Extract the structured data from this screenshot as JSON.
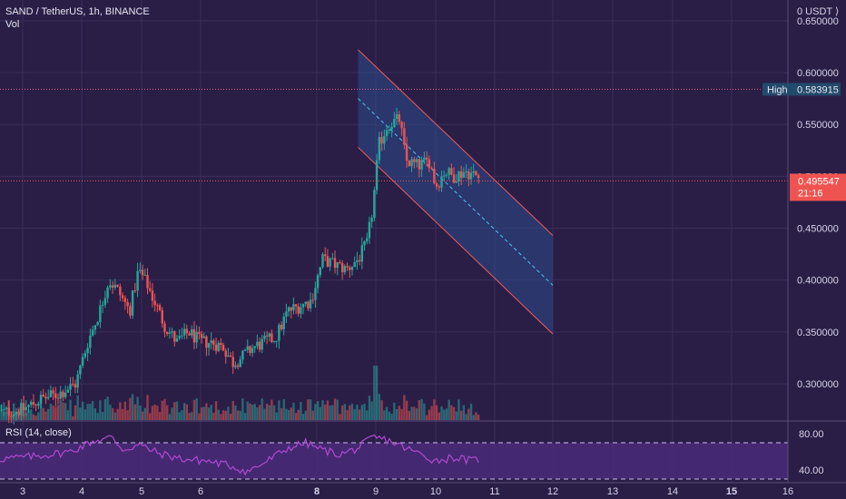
{
  "header": {
    "symbol": "SAND / TetherUS, 1h, BINANCE",
    "volume_label": "Vol"
  },
  "price_axis": {
    "top_label": "0 USDT ⟩",
    "ticks": [
      "0.650000",
      "0.600000",
      "0.550000",
      "0.500000",
      "0.450000",
      "0.400000",
      "0.350000",
      "0.300000"
    ],
    "high_label": "High",
    "high_value": "0.583915",
    "last_price": "0.495547",
    "countdown": "21:16"
  },
  "rsi": {
    "label": "RSI (14, close)",
    "ticks": [
      "80.00",
      "40.00"
    ]
  },
  "time_axis": {
    "ticks": [
      "3",
      "4",
      "5",
      "6",
      "8",
      "9",
      "10",
      "11",
      "12",
      "13",
      "14",
      "15",
      "16"
    ],
    "bold": [
      "8",
      "15"
    ]
  },
  "colors": {
    "background": "#2a1e47",
    "grid": "#3a2e5a",
    "up": "#26a69a",
    "down": "#ef5350",
    "channel_fill": "#2a4a8a",
    "channel_border": "#f05a5a",
    "channel_mid": "#4fc3f7",
    "rsi_band": "#4a2a7a",
    "rsi_line": "#b04ad0",
    "last_price": "#ef5350",
    "high_line": "#e0607a"
  },
  "chart_data": {
    "type": "candlestick",
    "title": "SAND / TetherUS, 1h, BINANCE",
    "ylim": [
      0.265,
      0.67
    ],
    "rsi_ylim": [
      27,
      93
    ],
    "high": 0.583915,
    "last": 0.495547,
    "x_days": [
      "3",
      "4",
      "5",
      "6",
      "8",
      "9",
      "10",
      "11",
      "12",
      "13",
      "14",
      "15",
      "16"
    ],
    "path_keypoints": [
      [
        2.6,
        0.272
      ],
      [
        3.0,
        0.275
      ],
      [
        3.3,
        0.285
      ],
      [
        3.6,
        0.29
      ],
      [
        3.9,
        0.3
      ],
      [
        4.1,
        0.34
      ],
      [
        4.3,
        0.37
      ],
      [
        4.45,
        0.4
      ],
      [
        4.6,
        0.39
      ],
      [
        4.8,
        0.37
      ],
      [
        4.95,
        0.41
      ],
      [
        5.1,
        0.395
      ],
      [
        5.25,
        0.375
      ],
      [
        5.4,
        0.355
      ],
      [
        5.6,
        0.34
      ],
      [
        5.8,
        0.35
      ],
      [
        6.0,
        0.34
      ],
      [
        6.2,
        0.34
      ],
      [
        6.4,
        0.335
      ],
      [
        6.55,
        0.32
      ],
      [
        6.7,
        0.325
      ],
      [
        6.9,
        0.335
      ],
      [
        7.1,
        0.34
      ],
      [
        7.3,
        0.345
      ],
      [
        7.5,
        0.37
      ],
      [
        7.7,
        0.375
      ],
      [
        7.9,
        0.38
      ],
      [
        8.1,
        0.42
      ],
      [
        8.3,
        0.415
      ],
      [
        8.5,
        0.41
      ],
      [
        8.7,
        0.42
      ],
      [
        8.85,
        0.435
      ],
      [
        8.95,
        0.47
      ],
      [
        9.05,
        0.53
      ],
      [
        9.2,
        0.55
      ],
      [
        9.4,
        0.555
      ],
      [
        9.5,
        0.515
      ],
      [
        9.7,
        0.51
      ],
      [
        9.9,
        0.515
      ],
      [
        10.0,
        0.49
      ],
      [
        10.15,
        0.505
      ],
      [
        10.3,
        0.5
      ],
      [
        10.5,
        0.505
      ],
      [
        10.7,
        0.5
      ],
      [
        10.75,
        0.498
      ]
    ],
    "channel": {
      "upper": [
        [
          8.7,
          0.622
        ],
        [
          12.0,
          0.443
        ]
      ],
      "lower": [
        [
          8.7,
          0.528
        ],
        [
          12.0,
          0.348
        ]
      ],
      "mid": [
        [
          8.7,
          0.575
        ],
        [
          12.0,
          0.395
        ]
      ]
    },
    "rsi_keypoints": [
      [
        2.6,
        52
      ],
      [
        3.2,
        55
      ],
      [
        3.8,
        60
      ],
      [
        4.2,
        72
      ],
      [
        4.5,
        76
      ],
      [
        4.7,
        62
      ],
      [
        4.95,
        68
      ],
      [
        5.3,
        58
      ],
      [
        5.7,
        52
      ],
      [
        6.1,
        50
      ],
      [
        6.5,
        45
      ],
      [
        6.8,
        38
      ],
      [
        7.1,
        48
      ],
      [
        7.5,
        64
      ],
      [
        7.8,
        70
      ],
      [
        8.1,
        62
      ],
      [
        8.4,
        57
      ],
      [
        8.7,
        64
      ],
      [
        8.95,
        76
      ],
      [
        9.2,
        73
      ],
      [
        9.5,
        64
      ],
      [
        9.8,
        56
      ],
      [
        10.0,
        50
      ],
      [
        10.3,
        54
      ],
      [
        10.6,
        50
      ],
      [
        10.75,
        52
      ]
    ],
    "rsi_levels": [
      70,
      30
    ]
  }
}
